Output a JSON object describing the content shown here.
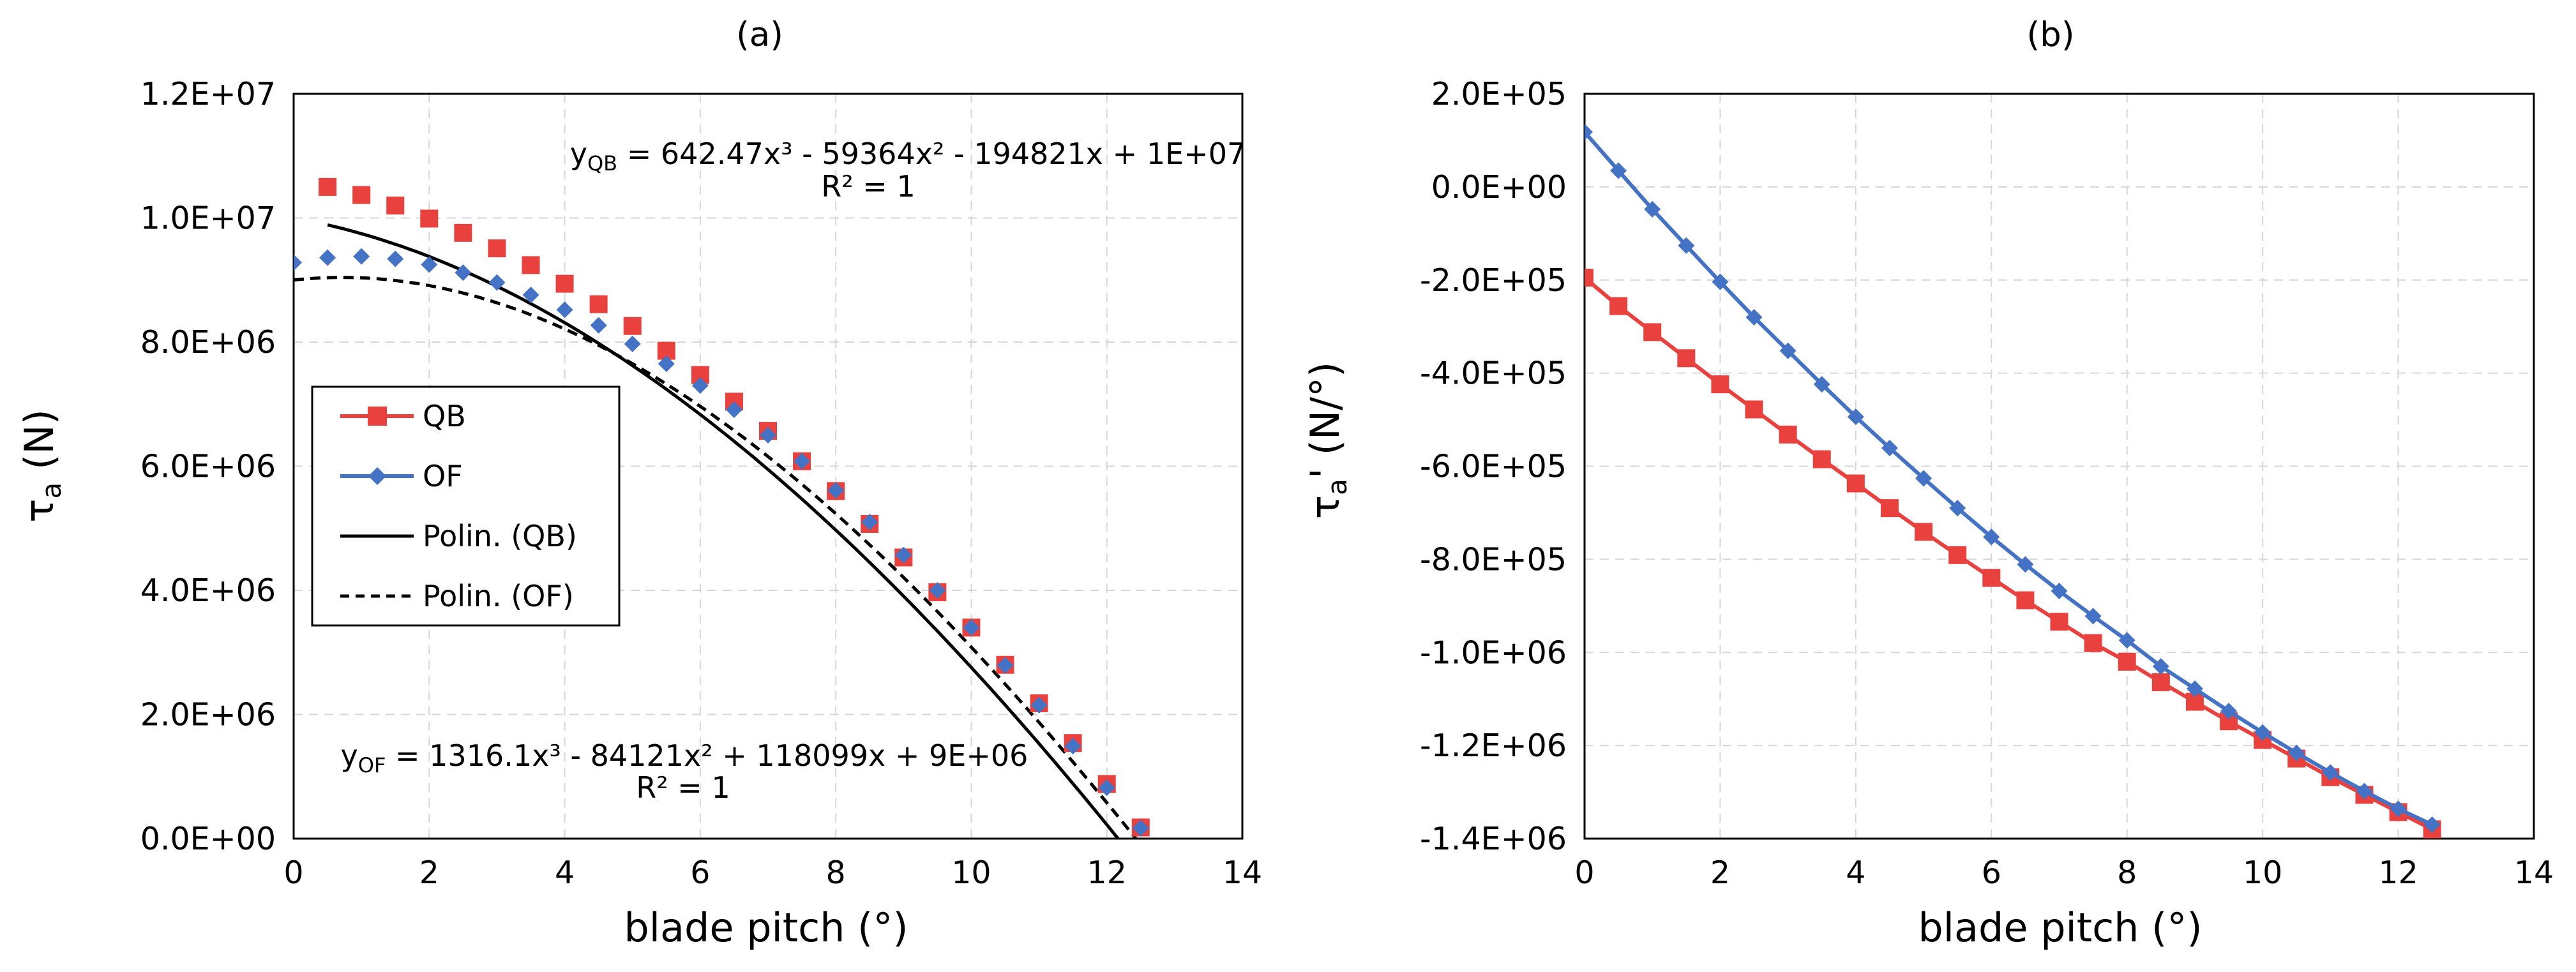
{
  "chart_data": [
    {
      "type": "scatter",
      "panel_label": "(a)",
      "xlabel": "blade pitch (°)",
      "ylabel": {
        "base": "τ",
        "sub": "a",
        "rest": " (N)"
      },
      "xlim": [
        0,
        14
      ],
      "ylim": [
        0,
        12000000
      ],
      "xticks": [
        0,
        2,
        4,
        6,
        8,
        10,
        12,
        14
      ],
      "yticks": [
        0,
        2000000,
        4000000,
        6000000,
        8000000,
        10000000,
        12000000
      ],
      "ytick_labels": [
        "0.0E+00",
        "2.0E+06",
        "4.0E+06",
        "6.0E+06",
        "8.0E+06",
        "1.0E+07",
        "1.2E+07"
      ],
      "grid": true,
      "legend_position": "left",
      "series": [
        {
          "name": "QB",
          "marker": "square",
          "color": "#e8413e",
          "x": [
            0.5,
            1,
            1.5,
            2,
            2.5,
            3,
            3.5,
            4,
            4.5,
            5,
            5.5,
            6,
            6.5,
            7,
            7.5,
            8,
            8.5,
            9,
            9.5,
            10,
            10.5,
            11,
            11.5,
            12,
            12.5
          ],
          "y": [
            10500000,
            10370000,
            10200000,
            9990000,
            9760000,
            9510000,
            9240000,
            8940000,
            8610000,
            8260000,
            7860000,
            7470000,
            7040000,
            6570000,
            6080000,
            5600000,
            5070000,
            4530000,
            3970000,
            3400000,
            2800000,
            2180000,
            1540000,
            880000,
            180000
          ]
        },
        {
          "name": "OF",
          "marker": "diamond",
          "color": "#4472c4",
          "x": [
            0,
            0.5,
            1,
            1.5,
            2,
            2.5,
            3,
            3.5,
            4,
            4.5,
            5,
            5.5,
            6,
            6.5,
            7,
            7.5,
            8,
            8.5,
            9,
            9.5,
            10,
            10.5,
            11,
            11.5,
            12,
            12.5
          ],
          "y": [
            9280000,
            9360000,
            9380000,
            9340000,
            9250000,
            9120000,
            8960000,
            8760000,
            8520000,
            8270000,
            7970000,
            7650000,
            7300000,
            6910000,
            6500000,
            6080000,
            5610000,
            5100000,
            4570000,
            4000000,
            3400000,
            2790000,
            2150000,
            1490000,
            820000,
            170000
          ]
        }
      ],
      "trendlines": [
        {
          "name": "Polin. (QB)",
          "style": "solid",
          "coeffs": [
            642.47,
            -59364,
            -194821,
            10000000
          ],
          "x_range": [
            0.5,
            12.5
          ]
        },
        {
          "name": "Polin. (OF)",
          "style": "dashed",
          "coeffs": [
            1316.1,
            -84121,
            118099,
            9000000
          ],
          "x_range": [
            0,
            12.5
          ]
        }
      ],
      "annotations": [
        {
          "y_sub": "QB",
          "equation": " = 642.47x³ - 59364x² - 194821x + 1E+07",
          "r2": "R² = 1"
        },
        {
          "y_sub": "OF",
          "equation": " = 1316.1x³ - 84121x² + 118099x + 9E+06",
          "r2": "R² = 1"
        }
      ]
    },
    {
      "type": "line",
      "panel_label": "(b)",
      "xlabel": "blade pitch (°)",
      "ylabel": {
        "base": "τ",
        "sub": "a",
        "rest": "' (N/°)"
      },
      "xlim": [
        0,
        14
      ],
      "ylim": [
        -1400000,
        200000
      ],
      "xticks": [
        0,
        2,
        4,
        6,
        8,
        10,
        12,
        14
      ],
      "yticks": [
        -1400000,
        -1200000,
        -1000000,
        -800000,
        -600000,
        -400000,
        -200000,
        0,
        200000
      ],
      "ytick_labels": [
        "-1.4E+06",
        "-1.2E+06",
        "-1.0E+06",
        "-8.0E+05",
        "-6.0E+05",
        "-4.0E+05",
        "-2.0E+05",
        "0.0E+00",
        "2.0E+05"
      ],
      "grid": true,
      "series": [
        {
          "name": "QB",
          "marker": "square",
          "color": "#e8413e",
          "x": [
            0,
            0.5,
            1,
            1.5,
            2,
            2.5,
            3,
            3.5,
            4,
            4.5,
            5,
            5.5,
            6,
            6.5,
            7,
            7.5,
            8,
            8.5,
            9,
            9.5,
            10,
            10.5,
            11,
            11.5,
            12,
            12.5
          ],
          "y": [
            -195000,
            -256000,
            -312000,
            -368000,
            -424000,
            -478000,
            -532000,
            -585000,
            -637000,
            -690000,
            -741000,
            -791000,
            -840000,
            -888000,
            -934000,
            -980000,
            -1020000,
            -1064000,
            -1106000,
            -1148000,
            -1188000,
            -1228000,
            -1268000,
            -1306000,
            -1343000,
            -1380000
          ]
        },
        {
          "name": "OF",
          "marker": "diamond",
          "color": "#4472c4",
          "x": [
            0,
            0.5,
            1,
            1.5,
            2,
            2.5,
            3,
            3.5,
            4,
            4.5,
            5,
            5.5,
            6,
            6.5,
            7,
            7.5,
            8,
            8.5,
            9,
            9.5,
            10,
            10.5,
            11,
            11.5,
            12,
            12.5
          ],
          "y": [
            118000,
            35000,
            -48000,
            -126000,
            -204000,
            -280000,
            -352000,
            -424000,
            -494000,
            -561000,
            -626000,
            -690000,
            -752000,
            -811000,
            -868000,
            -922000,
            -974000,
            -1030000,
            -1078000,
            -1126000,
            -1172000,
            -1216000,
            -1258000,
            -1298000,
            -1336000,
            -1370000
          ]
        }
      ]
    }
  ],
  "legend": {
    "items": [
      {
        "label": "QB"
      },
      {
        "label": "OF"
      },
      {
        "label": "Polin. (QB)"
      },
      {
        "label": "Polin. (OF)"
      }
    ]
  }
}
